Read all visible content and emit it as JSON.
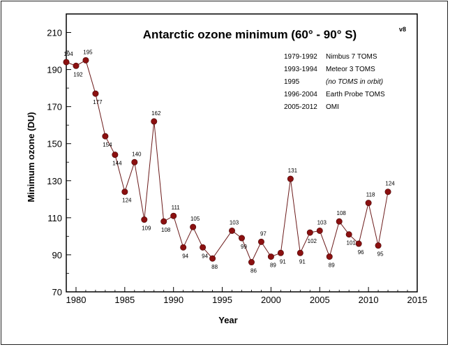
{
  "chart_data": {
    "type": "line",
    "title": "Antarctic ozone minimum (60° - 90° S)",
    "version_label": "v8",
    "xlabel": "Year",
    "ylabel": "Minimum ozone (DU)",
    "xlim": [
      1979,
      2015
    ],
    "ylim": [
      70,
      220
    ],
    "x_ticks": [
      1980,
      1985,
      1990,
      1995,
      2000,
      2005,
      2010,
      2015
    ],
    "y_ticks": [
      70,
      90,
      110,
      130,
      150,
      170,
      190,
      210
    ],
    "grid": false,
    "series_color": "#8b1010",
    "line_color": "#6b1a1a",
    "series": [
      {
        "x": [
          1979,
          1980,
          1981,
          1982,
          1983,
          1984,
          1985,
          1986,
          1987,
          1988,
          1989,
          1990,
          1991,
          1992,
          1993,
          1994,
          1996,
          1997,
          1998,
          1999,
          2000,
          2001,
          2002,
          2003,
          2004,
          2005,
          2006,
          2007,
          2008,
          2009,
          2010,
          2011,
          2012
        ],
        "values": [
          194,
          192,
          195,
          177,
          154,
          144,
          124,
          140,
          109,
          162,
          108,
          111,
          94,
          105,
          94,
          88,
          103,
          99,
          86,
          97,
          89,
          91,
          131,
          91,
          102,
          103,
          89,
          108,
          101,
          96,
          118,
          95,
          124
        ]
      }
    ],
    "legend": [
      {
        "years": "1979-1992",
        "instrument": "Nimbus 7 TOMS",
        "italic": false
      },
      {
        "years": "1993-1994",
        "instrument": "Meteor 3 TOMS",
        "italic": false
      },
      {
        "years": "1995",
        "instrument": "(no TOMS in orbit)",
        "italic": true
      },
      {
        "years": "1996-2004",
        "instrument": "Earth Probe TOMS",
        "italic": false
      },
      {
        "years": "2005-2012",
        "instrument": "OMI",
        "italic": false
      }
    ]
  }
}
